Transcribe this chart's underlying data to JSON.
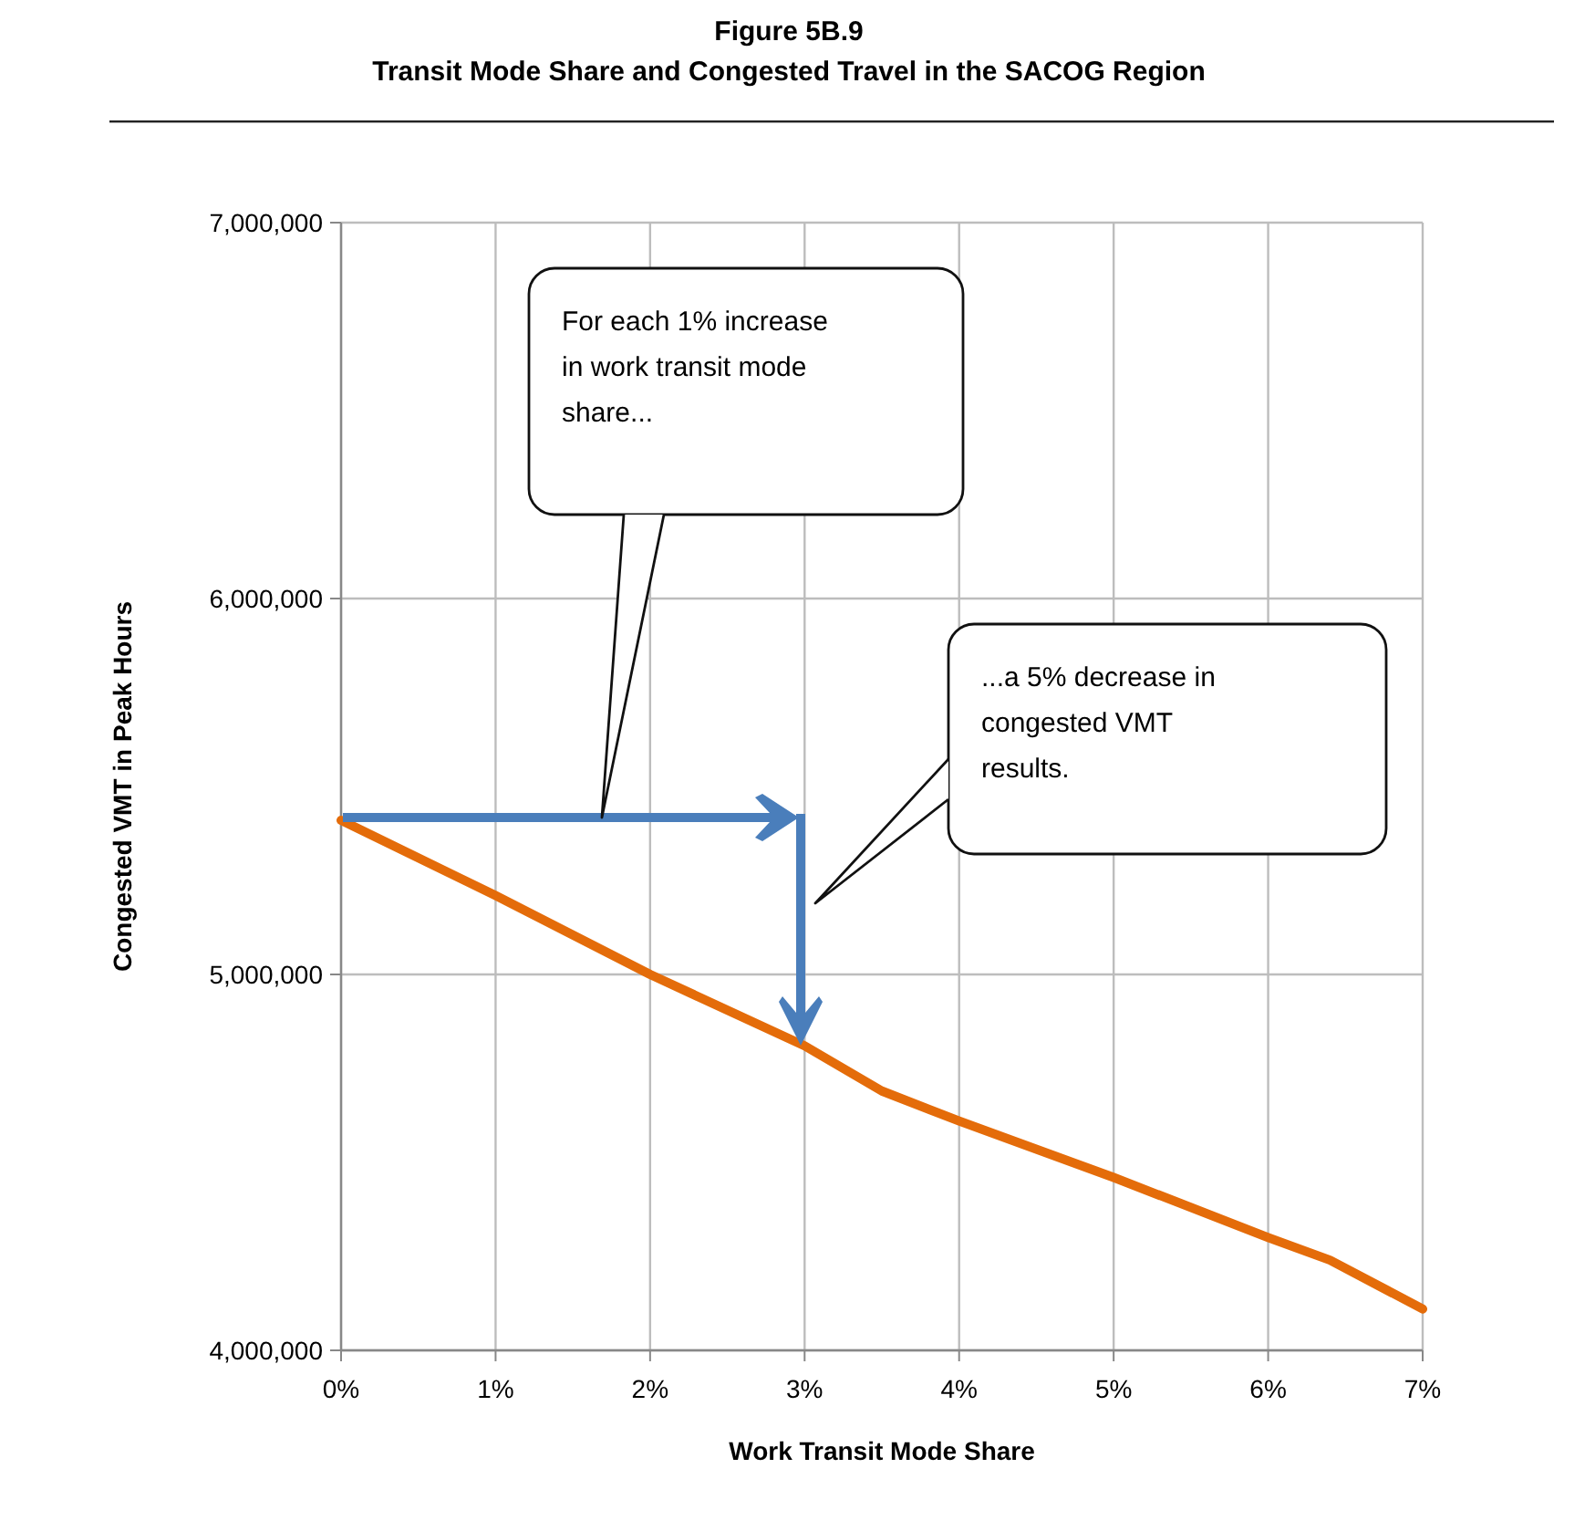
{
  "chart_data": {
    "type": "line",
    "title": "Figure 5B.9",
    "subtitle": "Transit Mode Share and Congested Travel in the SACOG Region",
    "xlabel": "Work Transit Mode Share",
    "ylabel": "Congested VMT in Peak Hours",
    "xlim": [
      0,
      7
    ],
    "xticks": [
      {
        "value": 0,
        "label": "0%"
      },
      {
        "value": 1,
        "label": "1%"
      },
      {
        "value": 2,
        "label": "2%"
      },
      {
        "value": 3,
        "label": "3%"
      },
      {
        "value": 4,
        "label": "4%"
      },
      {
        "value": 5,
        "label": "5%"
      },
      {
        "value": 6,
        "label": "6%"
      },
      {
        "value": 7,
        "label": "7%"
      }
    ],
    "ylim": [
      4000000,
      7000000
    ],
    "yticks": [
      {
        "value": 4000000,
        "label": "4,000,000"
      },
      {
        "value": 5000000,
        "label": "5,000,000"
      },
      {
        "value": 6000000,
        "label": "6,000,000"
      },
      {
        "value": 7000000,
        "label": "7,000,000"
      }
    ],
    "grid": true,
    "marker": "none",
    "line_style": "solid",
    "series": [
      {
        "color": "#e46c0a",
        "x": [
          0,
          1,
          2,
          3,
          3.5,
          4,
          5,
          6,
          6.4,
          7
        ],
        "values": [
          5410000,
          5210000,
          5000000,
          4810000,
          4690000,
          4610000,
          4460000,
          4300000,
          4240000,
          4110000
        ]
      }
    ],
    "annotations": [
      "For each 1% increase in work transit mode share...",
      "...a 5% decrease in congested VMT results."
    ]
  }
}
